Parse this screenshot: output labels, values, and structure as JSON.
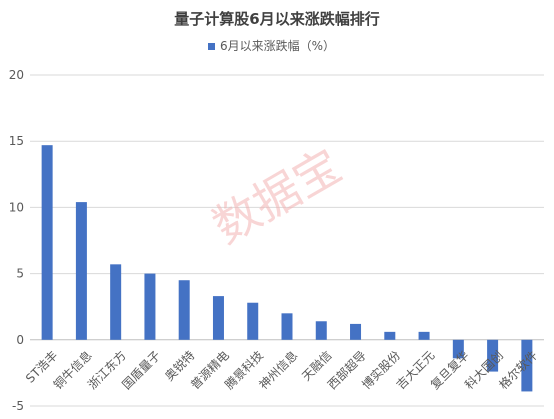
{
  "chart_data": {
    "type": "bar",
    "title": "量子计算股6月以来涨跌幅排行",
    "series": [
      {
        "name": "6月以来涨跌幅（%）",
        "color": "#4472C4",
        "values": [
          14.7,
          10.4,
          5.7,
          5.0,
          4.5,
          3.3,
          2.8,
          2.0,
          1.4,
          1.2,
          0.6,
          0.6,
          -1.4,
          -2.4,
          -3.9
        ]
      }
    ],
    "categories": [
      "ST浩丰",
      "铜牛信息",
      "浙江东方",
      "国盾量子",
      "奥锐特",
      "普源精电",
      "腾景科技",
      "神州信息",
      "天融信",
      "西部超导",
      "博实股份",
      "吉大正元",
      "复旦复华",
      "科大国创",
      "格尔软件"
    ],
    "ylim": [
      -5,
      20
    ],
    "yticks": [
      -5,
      0,
      5,
      10,
      15,
      20
    ],
    "grid": true,
    "legend": "top"
  },
  "watermark": "数据宝"
}
